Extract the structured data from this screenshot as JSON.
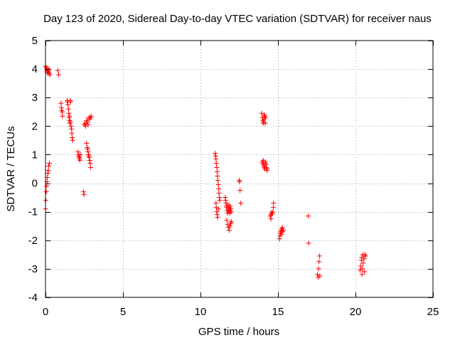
{
  "chart_data": {
    "type": "scatter",
    "title": "Day 123 of 2020, Sidereal Day-to-day VTEC variation (SDTVAR) for receiver naus",
    "xlabel": "GPS time / hours",
    "ylabel": "SDTVAR / TECUs",
    "xlim": [
      0,
      25
    ],
    "ylim": [
      -4,
      5
    ],
    "xticks": [
      0,
      5,
      10,
      15,
      20,
      25
    ],
    "yticks": [
      -4,
      -3,
      -2,
      -1,
      0,
      1,
      2,
      3,
      4,
      5
    ],
    "grid": true,
    "marker": "+",
    "marker_color": "#ff0000",
    "series": [
      {
        "name": "SDTVAR",
        "points": [
          [
            0.0,
            4.1
          ],
          [
            0.05,
            4.05
          ],
          [
            0.08,
            4.0
          ],
          [
            0.1,
            3.95
          ],
          [
            0.12,
            3.9
          ],
          [
            0.15,
            3.85
          ],
          [
            0.18,
            3.9
          ],
          [
            0.2,
            3.95
          ],
          [
            0.22,
            4.0
          ],
          [
            0.25,
            3.85
          ],
          [
            0.28,
            3.8
          ],
          [
            0.0,
            -0.9
          ],
          [
            0.02,
            -0.6
          ],
          [
            0.05,
            -0.3
          ],
          [
            0.08,
            -0.1
          ],
          [
            0.1,
            0.05
          ],
          [
            0.12,
            0.2
          ],
          [
            0.15,
            0.35
          ],
          [
            0.18,
            0.45
          ],
          [
            0.2,
            0.6
          ],
          [
            0.25,
            0.7
          ],
          [
            0.8,
            3.95
          ],
          [
            0.85,
            3.8
          ],
          [
            1.0,
            2.8
          ],
          [
            1.02,
            2.65
          ],
          [
            1.05,
            2.55
          ],
          [
            1.08,
            2.5
          ],
          [
            1.1,
            2.35
          ],
          [
            1.4,
            2.9
          ],
          [
            1.42,
            2.85
          ],
          [
            1.45,
            2.75
          ],
          [
            1.48,
            2.6
          ],
          [
            1.5,
            2.45
          ],
          [
            1.52,
            2.3
          ],
          [
            1.55,
            2.2
          ],
          [
            1.58,
            2.1
          ],
          [
            1.6,
            2.9
          ],
          [
            1.62,
            2.85
          ],
          [
            1.65,
            2.0
          ],
          [
            1.68,
            1.9
          ],
          [
            1.7,
            1.75
          ],
          [
            1.72,
            1.6
          ],
          [
            1.75,
            1.5
          ],
          [
            1.6,
            2.15
          ],
          [
            1.55,
            2.35
          ],
          [
            2.1,
            1.1
          ],
          [
            2.12,
            1.0
          ],
          [
            2.15,
            0.95
          ],
          [
            2.18,
            0.9
          ],
          [
            2.2,
            0.85
          ],
          [
            2.22,
            0.8
          ],
          [
            2.25,
            1.0
          ],
          [
            2.45,
            -0.3
          ],
          [
            2.48,
            -0.4
          ],
          [
            2.5,
            2.05
          ],
          [
            2.55,
            2.1
          ],
          [
            2.6,
            2.0
          ],
          [
            2.65,
            2.2
          ],
          [
            2.7,
            2.15
          ],
          [
            2.75,
            2.05
          ],
          [
            2.8,
            2.3
          ],
          [
            2.85,
            2.25
          ],
          [
            2.9,
            2.3
          ],
          [
            2.95,
            2.35
          ],
          [
            2.65,
            1.4
          ],
          [
            2.7,
            1.25
          ],
          [
            2.72,
            1.2
          ],
          [
            2.75,
            1.1
          ],
          [
            2.78,
            1.0
          ],
          [
            2.8,
            0.95
          ],
          [
            2.82,
            0.9
          ],
          [
            2.85,
            0.8
          ],
          [
            2.88,
            0.7
          ],
          [
            2.92,
            0.55
          ],
          [
            10.95,
            1.05
          ],
          [
            10.98,
            0.95
          ],
          [
            11.0,
            0.85
          ],
          [
            11.02,
            0.7
          ],
          [
            11.05,
            0.55
          ],
          [
            11.08,
            0.4
          ],
          [
            11.1,
            0.25
          ],
          [
            11.12,
            0.1
          ],
          [
            11.15,
            -0.05
          ],
          [
            11.18,
            -0.2
          ],
          [
            11.2,
            -0.35
          ],
          [
            11.22,
            -0.5
          ],
          [
            11.25,
            -0.6
          ],
          [
            11.0,
            -0.7
          ],
          [
            11.02,
            -0.85
          ],
          [
            11.05,
            -1.0
          ],
          [
            11.08,
            -1.1
          ],
          [
            11.1,
            -1.2
          ],
          [
            11.15,
            -0.9
          ],
          [
            11.6,
            -0.5
          ],
          [
            11.62,
            -0.6
          ],
          [
            11.65,
            -0.7
          ],
          [
            11.68,
            -0.8
          ],
          [
            11.7,
            -0.85
          ],
          [
            11.72,
            -0.95
          ],
          [
            11.75,
            -1.05
          ],
          [
            11.78,
            -0.75
          ],
          [
            11.8,
            -0.9
          ],
          [
            11.82,
            -1.0
          ],
          [
            11.85,
            -0.85
          ],
          [
            11.88,
            -0.95
          ],
          [
            11.9,
            -1.05
          ],
          [
            11.92,
            -0.8
          ],
          [
            11.95,
            -0.9
          ],
          [
            11.98,
            -1.0
          ],
          [
            11.7,
            -1.3
          ],
          [
            11.75,
            -1.45
          ],
          [
            11.8,
            -1.55
          ],
          [
            11.85,
            -1.65
          ],
          [
            11.9,
            -1.5
          ],
          [
            11.95,
            -1.4
          ],
          [
            12.0,
            -1.35
          ],
          [
            12.5,
            0.1
          ],
          [
            12.52,
            0.05
          ],
          [
            12.55,
            -0.25
          ],
          [
            12.6,
            -0.7
          ],
          [
            13.95,
            2.45
          ],
          [
            14.0,
            2.3
          ],
          [
            14.02,
            2.2
          ],
          [
            14.05,
            2.1
          ],
          [
            14.08,
            2.15
          ],
          [
            14.1,
            2.25
          ],
          [
            14.12,
            2.4
          ],
          [
            14.15,
            2.35
          ],
          [
            14.18,
            2.1
          ],
          [
            14.2,
            2.3
          ],
          [
            14.0,
            0.75
          ],
          [
            14.02,
            0.7
          ],
          [
            14.05,
            0.8
          ],
          [
            14.08,
            0.65
          ],
          [
            14.1,
            0.6
          ],
          [
            14.12,
            0.55
          ],
          [
            14.15,
            0.5
          ],
          [
            14.18,
            0.75
          ],
          [
            14.2,
            0.7
          ],
          [
            14.22,
            0.65
          ],
          [
            14.25,
            0.55
          ],
          [
            14.28,
            0.45
          ],
          [
            14.3,
            0.5
          ],
          [
            14.5,
            -1.15
          ],
          [
            14.55,
            -1.1
          ],
          [
            14.6,
            -1.05
          ],
          [
            14.62,
            -1.0
          ],
          [
            14.65,
            -1.05
          ],
          [
            14.7,
            -0.85
          ],
          [
            14.72,
            -0.7
          ],
          [
            14.55,
            -1.25
          ],
          [
            15.1,
            -1.95
          ],
          [
            15.12,
            -1.85
          ],
          [
            15.15,
            -1.75
          ],
          [
            15.18,
            -1.7
          ],
          [
            15.2,
            -1.65
          ],
          [
            15.22,
            -1.8
          ],
          [
            15.25,
            -1.6
          ],
          [
            15.28,
            -1.55
          ],
          [
            15.3,
            -1.7
          ],
          [
            15.35,
            -1.65
          ],
          [
            16.95,
            -1.15
          ],
          [
            16.98,
            -2.1
          ],
          [
            17.55,
            -3.2
          ],
          [
            17.6,
            -3.3
          ],
          [
            17.62,
            -3.0
          ],
          [
            17.65,
            -2.75
          ],
          [
            17.68,
            -2.55
          ],
          [
            17.7,
            -3.25
          ],
          [
            20.3,
            -3.05
          ],
          [
            20.35,
            -2.9
          ],
          [
            20.38,
            -2.7
          ],
          [
            20.4,
            -2.6
          ],
          [
            20.42,
            -3.2
          ],
          [
            20.45,
            -3.0
          ],
          [
            20.48,
            -2.5
          ],
          [
            20.5,
            -2.8
          ],
          [
            20.55,
            -2.65
          ],
          [
            20.58,
            -3.1
          ],
          [
            20.6,
            -2.5
          ],
          [
            20.65,
            -2.55
          ]
        ]
      }
    ]
  }
}
